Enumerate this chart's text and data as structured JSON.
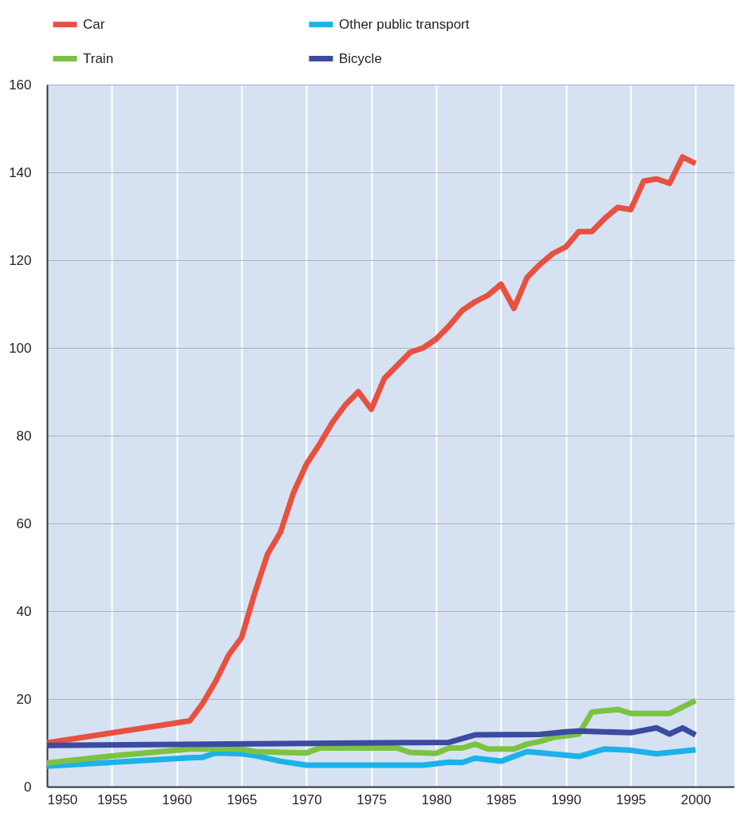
{
  "chart_data": {
    "type": "line",
    "xlim": [
      1950,
      2003
    ],
    "xticks": [
      1950,
      1955,
      1960,
      1965,
      1970,
      1975,
      1980,
      1985,
      1990,
      1995,
      2000
    ],
    "ylim": [
      0,
      160
    ],
    "yticks": [
      0,
      20,
      40,
      60,
      80,
      100,
      120,
      140,
      160
    ],
    "grid": true,
    "legend": "top left",
    "line_style": "solid",
    "marker": "none",
    "series": [
      {
        "name": "Car",
        "color": "#e8503f",
        "x": [
          1950,
          1961,
          1962,
          1963,
          1964,
          1965,
          1966,
          1967,
          1968,
          1969,
          1970,
          1971,
          1972,
          1973,
          1974,
          1975,
          1976,
          1977,
          1978,
          1979,
          1980,
          1981,
          1982,
          1983,
          1984,
          1985,
          1986,
          1987,
          1988,
          1989,
          1990,
          1991,
          1992,
          1993,
          1994,
          1995,
          1996,
          1997,
          1998,
          1999,
          2000
        ],
        "values": [
          10,
          15,
          19,
          24,
          30,
          34,
          44,
          53,
          58,
          67,
          73.5,
          78,
          83,
          87,
          90,
          86,
          93,
          96,
          99,
          100,
          102,
          105,
          108.5,
          110.5,
          112,
          114.5,
          109,
          116,
          119,
          121.5,
          123,
          126.5,
          126.5,
          129.5,
          132,
          131.5,
          138,
          138.5,
          137.5,
          143.5,
          142
        ]
      },
      {
        "name": "Other public transport",
        "color": "#1ab2e8",
        "x": [
          1950,
          1961,
          1962,
          1963,
          1965,
          1966,
          1968,
          1970,
          1979,
          1981,
          1982,
          1983,
          1985,
          1987,
          1991,
          1993,
          1995,
          1997,
          2000
        ],
        "values": [
          4.7,
          6.6,
          6.7,
          7.7,
          7.5,
          7.1,
          5.8,
          4.9,
          4.9,
          5.6,
          5.5,
          6.5,
          5.8,
          8,
          6.9,
          8.6,
          8.3,
          7.5,
          8.4
        ]
      },
      {
        "name": "Train",
        "color": "#7dc242",
        "x": [
          1950,
          1955,
          1960,
          1961,
          1965,
          1966,
          1970,
          1971,
          1977,
          1978,
          1980,
          1981,
          1982,
          1983,
          1984,
          1986,
          1987,
          1988,
          1989,
          1990,
          1991,
          1992,
          1993,
          1994,
          1995,
          1998,
          2000
        ],
        "values": [
          5.4,
          7,
          8.3,
          8.6,
          8.6,
          8,
          7.7,
          8.8,
          8.8,
          7.8,
          7.6,
          8.8,
          8.8,
          9.7,
          8.6,
          8.6,
          9.7,
          10.3,
          11.2,
          11.6,
          12,
          17,
          17.3,
          17.6,
          16.7,
          16.7,
          19.6
        ]
      },
      {
        "name": "Bicycle",
        "color": "#3b4ba0",
        "x": [
          1950,
          1981,
          1983,
          1988,
          1990,
          1991,
          1995,
          1997,
          1998,
          1999,
          2000
        ],
        "values": [
          9.4,
          10.1,
          11.8,
          11.9,
          12.5,
          12.7,
          12.3,
          13.4,
          12,
          13.4,
          11.8
        ]
      }
    ]
  }
}
